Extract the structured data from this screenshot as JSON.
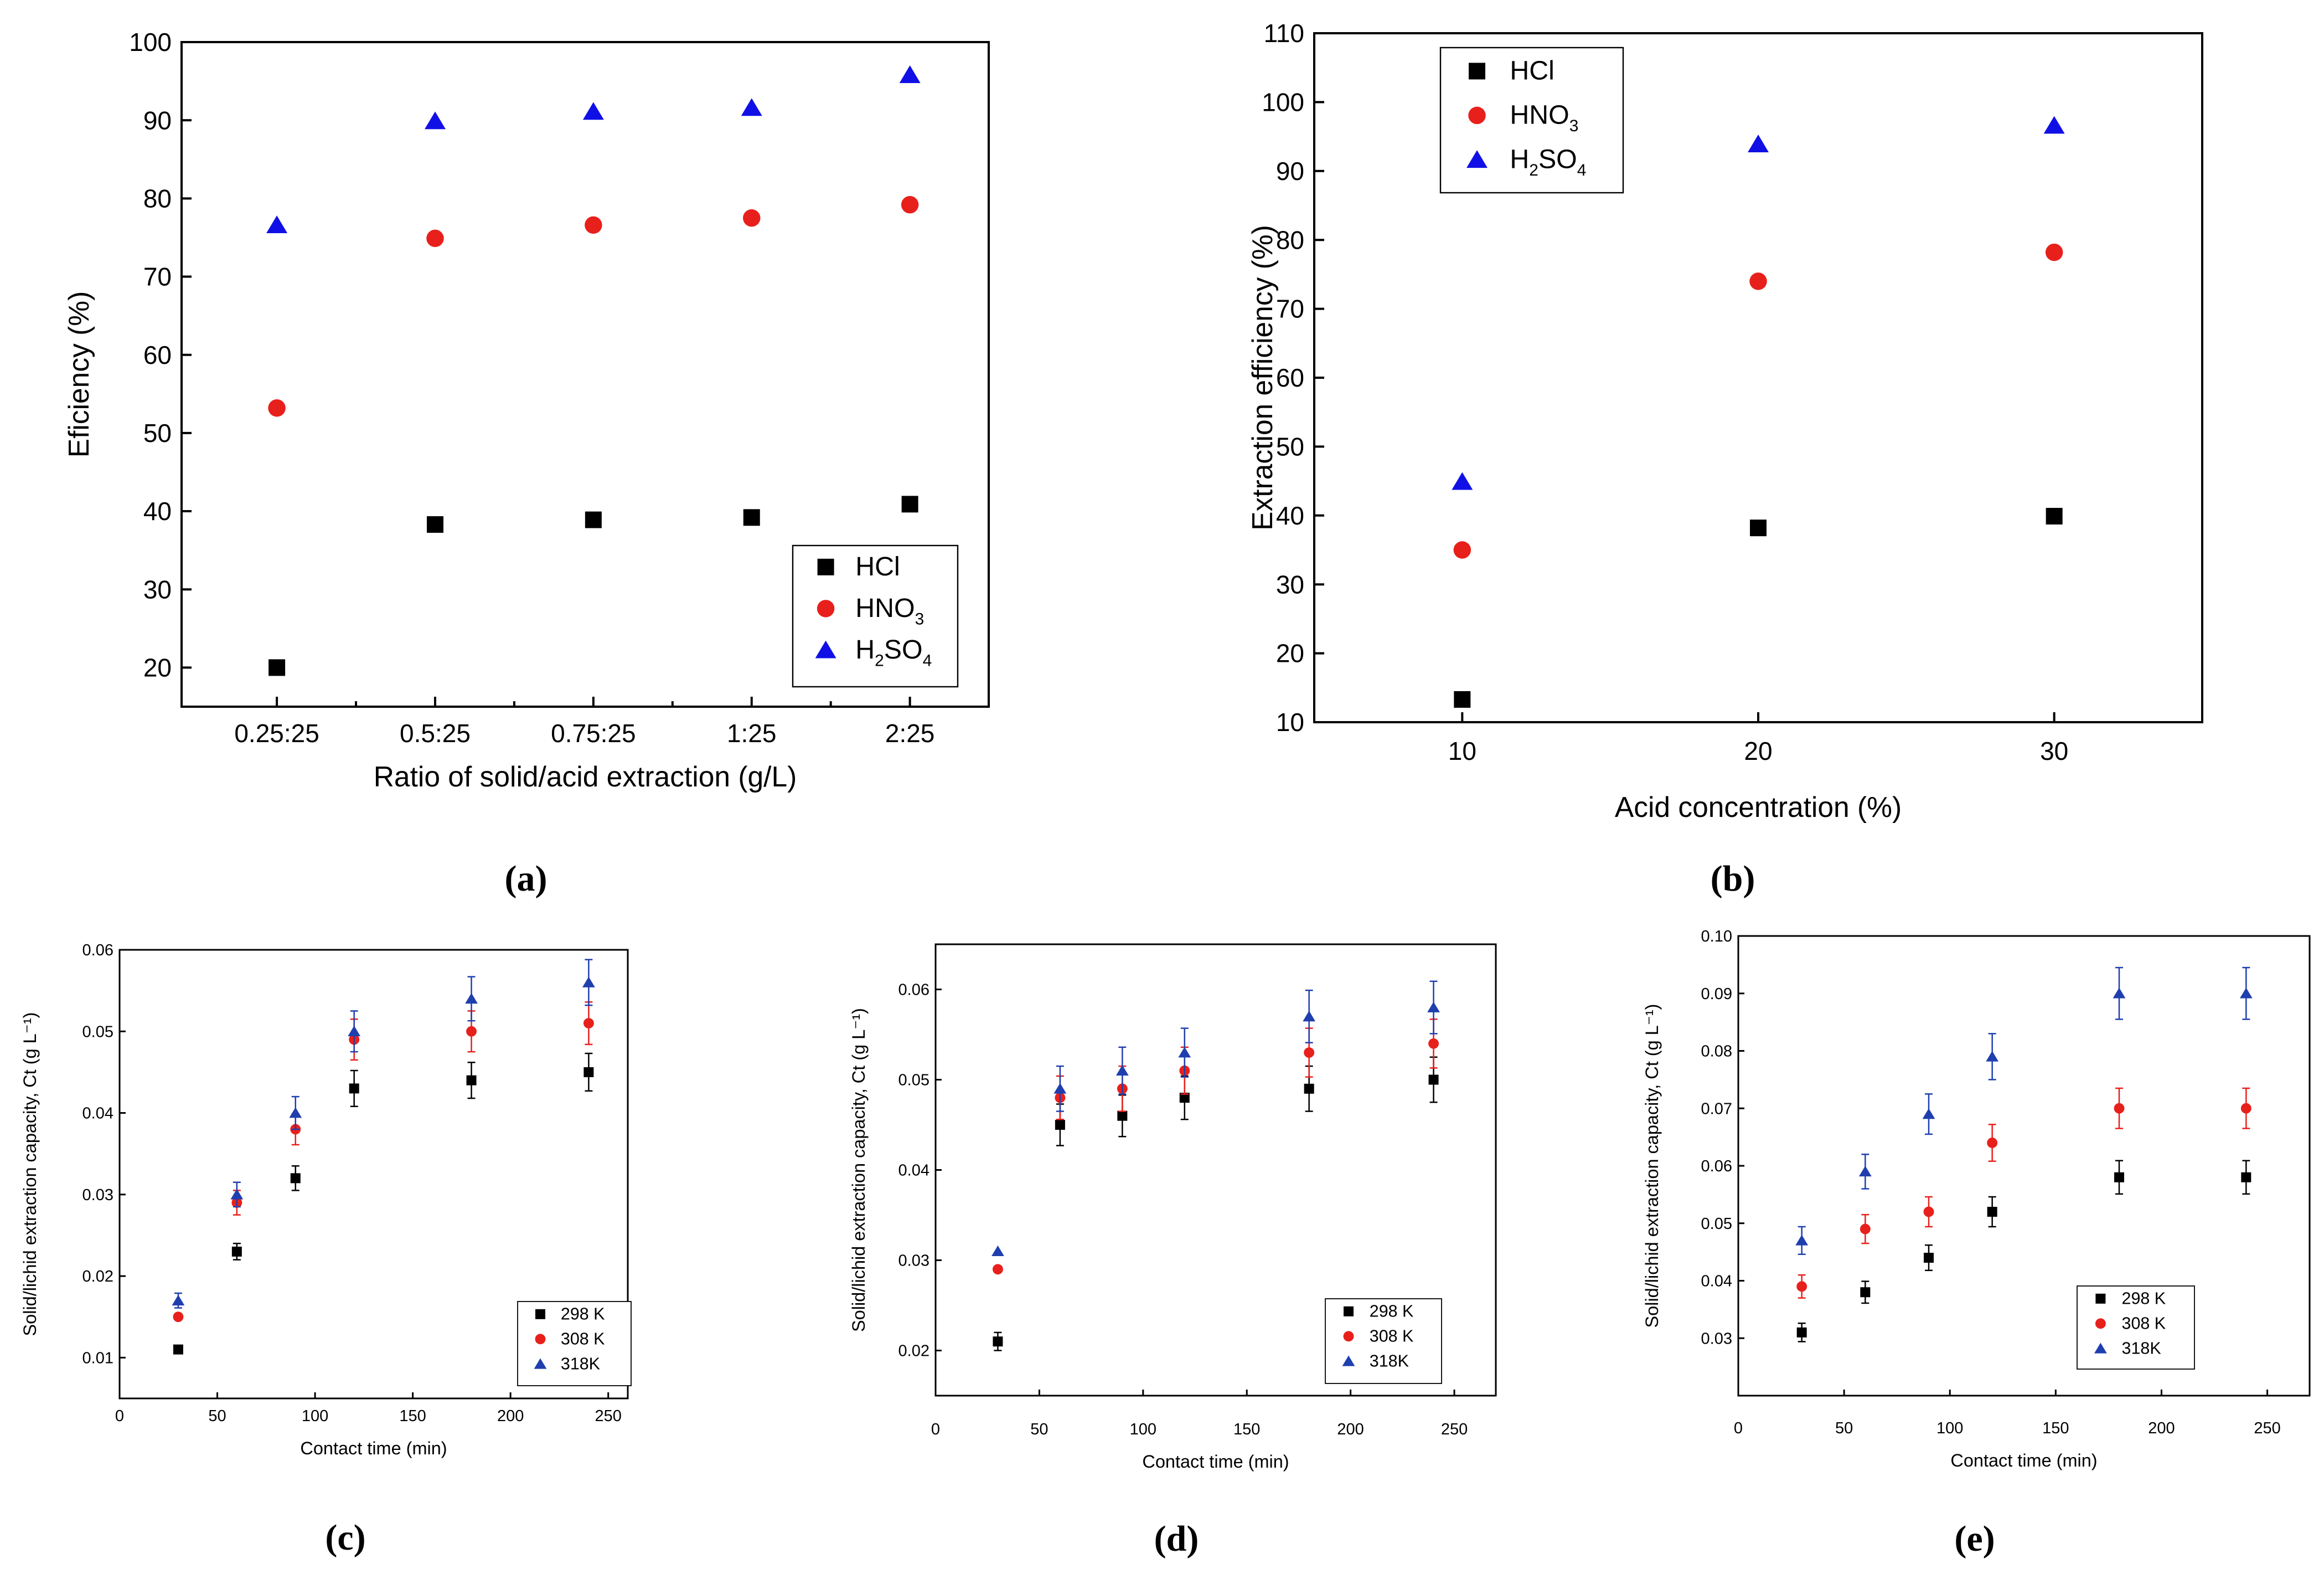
{
  "colors": {
    "black": "#000000",
    "red": "#e8201c",
    "blue": "#1010e6",
    "darkblue": "#1f3fae"
  },
  "chart_data": [
    {
      "id": "a",
      "type": "scatter",
      "caption": "(a)",
      "xlabel": "Ratio of solid/acid extraction (g/L)",
      "ylabel": "Eficiency (%)",
      "categories": [
        "0.25:25",
        "0.5:25",
        "0.75:25",
        "1:25",
        "2:25"
      ],
      "ylim": [
        15,
        100
      ],
      "yticks": [
        20,
        30,
        40,
        50,
        60,
        70,
        80,
        90,
        100
      ],
      "legend_position": "bottom-right",
      "grid": false,
      "series": [
        {
          "name": "HCl",
          "marker": "square",
          "color": "#000000",
          "values": [
            20,
            38.3,
            38.9,
            39.2,
            40.9
          ]
        },
        {
          "name": "HNO3",
          "name_parts": [
            "HNO",
            "3"
          ],
          "marker": "circle",
          "color": "#e8201c",
          "values": [
            53.2,
            74.9,
            76.6,
            77.5,
            79.2
          ]
        },
        {
          "name": "H2SO4",
          "name_parts": [
            "H",
            "2",
            "SO",
            "4"
          ],
          "marker": "triangle",
          "color": "#1010e6",
          "values": [
            76.6,
            89.9,
            91.1,
            91.6,
            95.8
          ]
        }
      ]
    },
    {
      "id": "b",
      "type": "scatter",
      "caption": "(b)",
      "xlabel": "Acid concentration (%)",
      "ylabel": "Extraction efficiency (%)",
      "x": [
        10,
        20,
        30
      ],
      "xlim": [
        5,
        35
      ],
      "xticks": [
        10,
        20,
        30
      ],
      "ylim": [
        10,
        110
      ],
      "yticks": [
        10,
        20,
        30,
        40,
        50,
        60,
        70,
        80,
        90,
        100,
        110
      ],
      "legend_position": "top-left",
      "grid": false,
      "series": [
        {
          "name": "HCl",
          "marker": "square",
          "color": "#000000",
          "values": [
            13.3,
            38.2,
            39.9
          ]
        },
        {
          "name": "HNO3",
          "name_parts": [
            "HNO",
            "3"
          ],
          "marker": "circle",
          "color": "#e8201c",
          "values": [
            35,
            74,
            78.2
          ]
        },
        {
          "name": "H2SO4",
          "name_parts": [
            "H",
            "2",
            "SO",
            "4"
          ],
          "marker": "triangle",
          "color": "#1010e6",
          "values": [
            44.9,
            93.9,
            96.6
          ]
        }
      ]
    },
    {
      "id": "c",
      "type": "scatter",
      "caption": "(c)",
      "xlabel": "Contact time (min)",
      "ylabel": "Solid/lichid extraction capacity, Ct (g L⁻¹)",
      "x": [
        30,
        60,
        90,
        120,
        180,
        240
      ],
      "xlim": [
        0,
        260
      ],
      "xticks": [
        0,
        50,
        100,
        150,
        200,
        250
      ],
      "ylim": [
        0.005,
        0.06
      ],
      "yticks": [
        0.01,
        0.02,
        0.03,
        0.04,
        0.05,
        0.06
      ],
      "legend_position": "bottom-right",
      "grid": false,
      "series": [
        {
          "name": "298 K",
          "marker": "square",
          "color": "#000000",
          "values": [
            0.011,
            0.023,
            0.032,
            0.043,
            0.044,
            0.045
          ],
          "errors": [
            0,
            0.001,
            0.0015,
            0.0022,
            0.0022,
            0.0023
          ]
        },
        {
          "name": "308 K",
          "marker": "circle",
          "color": "#e8201c",
          "values": [
            0.015,
            0.029,
            0.038,
            0.049,
            0.05,
            0.051
          ],
          "errors": [
            0,
            0.0015,
            0.0019,
            0.0025,
            0.0025,
            0.0026
          ]
        },
        {
          "name": "318K",
          "marker": "triangle",
          "color": "#1f3fae",
          "values": [
            0.017,
            0.03,
            0.04,
            0.05,
            0.054,
            0.056
          ],
          "errors": [
            0.0009,
            0.0015,
            0.002,
            0.0025,
            0.0027,
            0.0028
          ]
        }
      ]
    },
    {
      "id": "d",
      "type": "scatter",
      "caption": "(d)",
      "xlabel": "Contact time (min)",
      "ylabel": "Solid/lichid extraction capacity, Ct (g L⁻¹)",
      "x": [
        30,
        60,
        90,
        120,
        180,
        240
      ],
      "xlim": [
        0,
        270
      ],
      "xticks": [
        0,
        50,
        100,
        150,
        200,
        250
      ],
      "ylim": [
        0.015,
        0.065
      ],
      "yticks": [
        0.02,
        0.03,
        0.04,
        0.05,
        0.06
      ],
      "legend_position": "bottom-right",
      "grid": false,
      "series": [
        {
          "name": "298 K",
          "marker": "square",
          "color": "#000000",
          "values": [
            0.021,
            0.045,
            0.046,
            0.048,
            0.049,
            0.05
          ],
          "errors": [
            0.001,
            0.0023,
            0.0023,
            0.0024,
            0.0025,
            0.0025
          ]
        },
        {
          "name": "308 K",
          "marker": "circle",
          "color": "#e8201c",
          "values": [
            0.029,
            0.048,
            0.049,
            0.051,
            0.053,
            0.054
          ],
          "errors": [
            0,
            0.0024,
            0.0025,
            0.0026,
            0.0027,
            0.0027
          ]
        },
        {
          "name": "318K",
          "marker": "triangle",
          "color": "#1f3fae",
          "values": [
            0.031,
            0.049,
            0.051,
            0.053,
            0.057,
            0.058
          ],
          "errors": [
            0,
            0.0025,
            0.0026,
            0.0027,
            0.0029,
            0.0029
          ]
        }
      ]
    },
    {
      "id": "e",
      "type": "scatter",
      "caption": "(e)",
      "xlabel": "Contact time (min)",
      "ylabel": "Solid/lichid extraction capacity, Ct (g L⁻¹)",
      "x": [
        30,
        60,
        90,
        120,
        180,
        240
      ],
      "xlim": [
        0,
        270
      ],
      "xticks": [
        0,
        50,
        100,
        150,
        200,
        250
      ],
      "ylim": [
        0.02,
        0.1
      ],
      "yticks": [
        0.03,
        0.04,
        0.05,
        0.06,
        0.07,
        0.08,
        0.09,
        0.1
      ],
      "legend_position": "bottom-right",
      "grid": false,
      "series": [
        {
          "name": "298 K",
          "marker": "square",
          "color": "#000000",
          "values": [
            0.031,
            0.038,
            0.044,
            0.052,
            0.058,
            0.058
          ],
          "errors": [
            0.0016,
            0.0019,
            0.0022,
            0.0026,
            0.0029,
            0.0029
          ]
        },
        {
          "name": "308 K",
          "marker": "circle",
          "color": "#e8201c",
          "values": [
            0.039,
            0.049,
            0.052,
            0.064,
            0.07,
            0.07
          ],
          "errors": [
            0.002,
            0.0025,
            0.0026,
            0.0032,
            0.0035,
            0.0035
          ]
        },
        {
          "name": "318K",
          "marker": "triangle",
          "color": "#1f3fae",
          "values": [
            0.047,
            0.059,
            0.069,
            0.079,
            0.09,
            0.09
          ],
          "errors": [
            0.0024,
            0.003,
            0.0035,
            0.004,
            0.0045,
            0.0045
          ]
        }
      ]
    }
  ]
}
